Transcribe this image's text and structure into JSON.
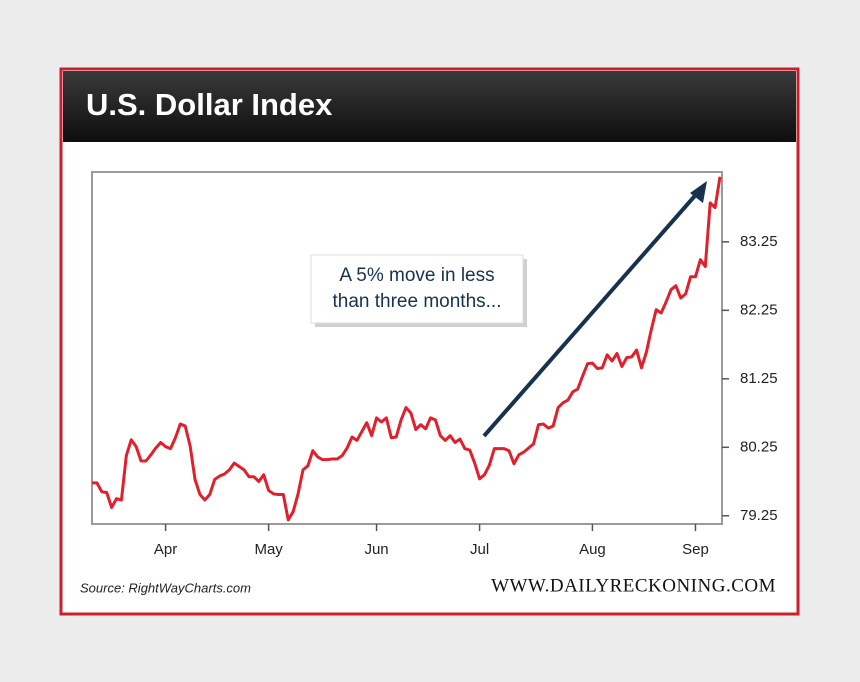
{
  "chart_data": {
    "type": "line",
    "title": "U.S. Dollar Index",
    "source": "Source: RightWayCharts.com",
    "website": "WWW.DAILYRECKONING.COM",
    "annotation": [
      "A 5% move in less",
      "than three months..."
    ],
    "color": "#e0202b",
    "categories": [
      null,
      null,
      null,
      null,
      null,
      null,
      null,
      null,
      null,
      null,
      null,
      null,
      null,
      null,
      null,
      "Apr",
      null,
      null,
      null,
      null,
      null,
      null,
      null,
      null,
      null,
      null,
      null,
      null,
      null,
      null,
      null,
      null,
      null,
      null,
      null,
      null,
      "May",
      null,
      null,
      null,
      null,
      null,
      null,
      null,
      null,
      null,
      null,
      null,
      null,
      null,
      null,
      null,
      null,
      null,
      null,
      null,
      null,
      null,
      "Jun",
      null,
      null,
      null,
      null,
      null,
      null,
      null,
      null,
      null,
      null,
      null,
      null,
      null,
      null,
      null,
      null,
      null,
      null,
      null,
      null,
      "Jul",
      null,
      null,
      null,
      null,
      null,
      null,
      null,
      null,
      null,
      null,
      null,
      null,
      null,
      null,
      null,
      null,
      null,
      null,
      null,
      null,
      null,
      null,
      "Aug",
      null,
      null,
      null,
      null,
      null,
      null,
      null,
      null,
      null,
      null,
      null,
      null,
      null,
      null,
      null,
      null,
      null,
      null,
      null,
      null,
      "Sep",
      null,
      null,
      null,
      null,
      null
    ],
    "values": [
      79.73,
      79.73,
      79.6,
      79.59,
      79.37,
      79.5,
      79.48,
      80.13,
      80.36,
      80.26,
      80.05,
      80.05,
      80.14,
      80.24,
      80.32,
      80.26,
      80.23,
      80.39,
      80.59,
      80.56,
      80.27,
      79.78,
      79.56,
      79.48,
      79.56,
      79.78,
      79.83,
      79.86,
      79.92,
      80.02,
      79.97,
      79.92,
      79.82,
      79.82,
      79.75,
      79.85,
      79.62,
      79.57,
      79.56,
      79.56,
      79.19,
      79.31,
      79.57,
      79.92,
      79.98,
      80.2,
      80.11,
      80.07,
      80.07,
      80.08,
      80.08,
      80.13,
      80.24,
      80.4,
      80.35,
      80.48,
      80.61,
      80.42,
      80.68,
      80.62,
      80.68,
      80.39,
      80.4,
      80.65,
      80.83,
      80.75,
      80.51,
      80.58,
      80.52,
      80.68,
      80.65,
      80.42,
      80.35,
      80.42,
      80.32,
      80.37,
      80.23,
      80.21,
      80.02,
      79.79,
      79.85,
      79.99,
      80.23,
      80.23,
      80.23,
      80.2,
      80.01,
      80.14,
      80.18,
      80.24,
      80.3,
      80.58,
      80.59,
      80.53,
      80.56,
      80.83,
      80.9,
      80.94,
      81.06,
      81.1,
      81.29,
      81.47,
      81.48,
      81.4,
      81.41,
      81.6,
      81.51,
      81.62,
      81.43,
      81.56,
      81.57,
      81.67,
      81.41,
      81.64,
      81.97,
      82.26,
      82.21,
      82.37,
      82.55,
      82.61,
      82.43,
      82.49,
      82.74,
      82.74,
      82.99,
      82.89,
      83.82,
      83.75,
      84.2
    ],
    "ylim": [
      79.13,
      84.27
    ],
    "yticks": [
      79.25,
      80.25,
      81.25,
      82.25,
      83.25
    ]
  }
}
